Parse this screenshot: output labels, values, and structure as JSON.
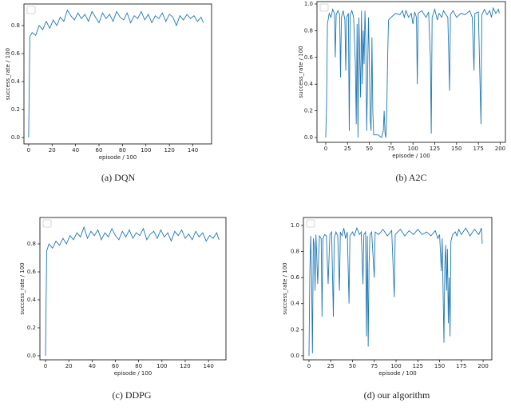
{
  "chart_data": [
    {
      "type": "line",
      "caption": "(a)  DQN",
      "xlabel": "episode / 100",
      "ylabel": "success_rate / 100",
      "color": "#1f77b4",
      "xlim": [
        -4,
        156
      ],
      "ylim": [
        -0.046,
        0.954
      ],
      "xticks": [
        0,
        20,
        40,
        60,
        80,
        100,
        120,
        140
      ],
      "yticks": [
        {
          "value": 0,
          "label": "0.0"
        },
        0.2,
        0.4,
        0.6,
        0.8
      ],
      "x": [
        0,
        1,
        3,
        6,
        9,
        12,
        15,
        18,
        21,
        24,
        27,
        30,
        33,
        36,
        39,
        42,
        45,
        48,
        51,
        54,
        57,
        60,
        63,
        66,
        69,
        72,
        75,
        78,
        81,
        84,
        87,
        90,
        93,
        96,
        99,
        102,
        105,
        108,
        111,
        114,
        117,
        120,
        123,
        126,
        129,
        132,
        135,
        138,
        141,
        144,
        147,
        149
      ],
      "values": [
        0.0,
        0.72,
        0.75,
        0.73,
        0.8,
        0.77,
        0.83,
        0.78,
        0.84,
        0.8,
        0.86,
        0.83,
        0.91,
        0.87,
        0.84,
        0.89,
        0.85,
        0.88,
        0.83,
        0.9,
        0.86,
        0.82,
        0.89,
        0.85,
        0.88,
        0.83,
        0.9,
        0.86,
        0.84,
        0.89,
        0.82,
        0.87,
        0.85,
        0.9,
        0.84,
        0.88,
        0.82,
        0.87,
        0.85,
        0.89,
        0.83,
        0.88,
        0.86,
        0.8,
        0.87,
        0.84,
        0.88,
        0.85,
        0.87,
        0.83,
        0.86,
        0.82
      ]
    },
    {
      "type": "line",
      "caption": "(b)  A2C",
      "xlabel": "episode / 100",
      "ylabel": "success_rate / 100",
      "color": "#1f77b4",
      "xlim": [
        -10,
        206
      ],
      "ylim": [
        -0.036,
        1.018
      ],
      "xticks": [
        0,
        25,
        50,
        75,
        100,
        125,
        150,
        175,
        200
      ],
      "yticks": [
        {
          "value": 0,
          "label": "0.0"
        },
        0.2,
        0.4,
        0.6,
        0.8,
        {
          "value": 1,
          "label": "1.0"
        }
      ],
      "x": [
        0,
        1,
        2,
        4,
        6,
        8,
        10,
        11,
        12,
        14,
        16,
        17,
        18,
        20,
        22,
        23,
        24,
        26,
        27,
        28,
        30,
        32,
        34,
        35,
        36,
        37,
        38,
        40,
        41,
        42,
        43,
        44,
        45,
        46,
        47,
        48,
        49,
        50,
        51,
        52,
        53,
        54,
        55,
        60,
        64,
        66,
        67,
        68,
        69,
        70,
        71,
        72,
        75,
        80,
        85,
        88,
        90,
        92,
        95,
        98,
        100,
        102,
        104,
        105,
        106,
        110,
        115,
        118,
        120,
        121,
        122,
        125,
        128,
        130,
        133,
        135,
        138,
        140,
        142,
        143,
        146,
        150,
        155,
        160,
        165,
        168,
        170,
        171,
        175,
        178,
        179,
        182,
        185,
        188,
        190,
        192,
        195,
        198,
        199
      ],
      "values": [
        0.0,
        0.25,
        0.85,
        0.93,
        0.9,
        0.96,
        0.93,
        0.6,
        0.92,
        0.95,
        0.92,
        0.45,
        0.9,
        0.95,
        0.88,
        0.5,
        0.9,
        0.93,
        0.05,
        0.92,
        0.95,
        0.9,
        0.55,
        0.1,
        0.85,
        0.0,
        0.9,
        0.3,
        0.95,
        0.4,
        0.8,
        0.55,
        0.95,
        0.7,
        0.05,
        0.45,
        0.9,
        0.6,
        0.15,
        0.05,
        0.75,
        0.2,
        0.02,
        0.02,
        0.0,
        0.05,
        0.2,
        0.03,
        0.0,
        0.2,
        0.6,
        0.88,
        0.9,
        0.93,
        0.92,
        0.95,
        0.9,
        0.95,
        0.9,
        0.93,
        0.85,
        0.94,
        0.9,
        0.4,
        0.93,
        0.95,
        0.9,
        0.94,
        0.6,
        0.03,
        0.9,
        0.96,
        0.88,
        0.93,
        0.9,
        0.95,
        0.92,
        0.9,
        0.35,
        0.92,
        0.95,
        0.9,
        0.93,
        0.92,
        0.95,
        0.9,
        0.5,
        0.93,
        0.94,
        0.1,
        0.92,
        0.96,
        0.92,
        0.95,
        0.9,
        0.97,
        0.93,
        0.96,
        0.93
      ]
    },
    {
      "type": "line",
      "caption": "(c)  DDPG",
      "xlabel": "episode / 100",
      "ylabel": "success_rate / 100",
      "color": "#1f77b4",
      "xlim": [
        -4.8,
        155
      ],
      "ylim": [
        -0.029,
        0.989
      ],
      "xticks": [
        0,
        20,
        40,
        60,
        80,
        100,
        120,
        140
      ],
      "yticks": [
        {
          "value": 0,
          "label": "0.0"
        },
        0.2,
        0.4,
        0.6,
        0.8
      ],
      "x": [
        0,
        1,
        3,
        6,
        9,
        12,
        15,
        18,
        21,
        24,
        27,
        30,
        33,
        36,
        39,
        42,
        45,
        48,
        51,
        54,
        57,
        60,
        63,
        66,
        69,
        72,
        75,
        78,
        81,
        84,
        87,
        90,
        93,
        96,
        99,
        102,
        105,
        108,
        111,
        114,
        117,
        120,
        123,
        126,
        129,
        132,
        135,
        138,
        141,
        144,
        147,
        149
      ],
      "values": [
        0.0,
        0.75,
        0.8,
        0.77,
        0.82,
        0.79,
        0.84,
        0.8,
        0.86,
        0.83,
        0.88,
        0.85,
        0.92,
        0.84,
        0.89,
        0.86,
        0.9,
        0.83,
        0.88,
        0.85,
        0.91,
        0.86,
        0.83,
        0.89,
        0.85,
        0.9,
        0.84,
        0.88,
        0.86,
        0.91,
        0.83,
        0.87,
        0.89,
        0.84,
        0.9,
        0.85,
        0.88,
        0.82,
        0.89,
        0.86,
        0.9,
        0.84,
        0.87,
        0.83,
        0.89,
        0.85,
        0.88,
        0.82,
        0.86,
        0.84,
        0.88,
        0.83
      ]
    },
    {
      "type": "line",
      "caption": "(d)  our algorithm",
      "xlabel": "episode / 100",
      "ylabel": "success_rate / 100",
      "color": "#1f77b4",
      "xlim": [
        -6.4,
        210
      ],
      "ylim": [
        -0.031,
        1.061
      ],
      "xticks": [
        0,
        25,
        50,
        75,
        100,
        125,
        150,
        175,
        200
      ],
      "yticks": [
        {
          "value": 0,
          "label": "0.0"
        },
        0.2,
        0.4,
        0.6,
        0.8,
        {
          "value": 1,
          "label": "1.0"
        }
      ],
      "x": [
        0,
        1,
        2,
        3,
        4,
        5,
        6,
        7,
        8,
        9,
        10,
        12,
        14,
        15,
        16,
        18,
        20,
        22,
        24,
        26,
        28,
        29,
        31,
        33,
        35,
        36,
        38,
        40,
        42,
        44,
        46,
        47,
        50,
        52,
        55,
        58,
        60,
        62,
        63,
        65,
        66,
        67,
        68,
        69,
        70,
        72,
        75,
        76,
        80,
        85,
        90,
        95,
        98,
        99,
        102,
        105,
        110,
        115,
        120,
        125,
        130,
        135,
        140,
        145,
        148,
        150,
        152,
        153,
        155,
        156,
        157,
        158,
        159,
        160,
        161,
        162,
        163,
        165,
        168,
        170,
        172,
        175,
        180,
        185,
        190,
        195,
        198,
        199
      ],
      "values": [
        0.0,
        0.65,
        0.92,
        0.6,
        0.02,
        0.9,
        0.85,
        0.5,
        0.93,
        0.75,
        0.55,
        0.92,
        0.9,
        0.3,
        0.9,
        0.93,
        0.92,
        0.55,
        0.93,
        0.95,
        0.3,
        0.9,
        0.95,
        0.92,
        0.5,
        0.95,
        0.92,
        0.98,
        0.9,
        0.95,
        0.4,
        0.92,
        0.95,
        0.92,
        0.98,
        0.93,
        0.95,
        0.55,
        0.93,
        0.95,
        0.15,
        0.92,
        0.07,
        0.7,
        0.93,
        0.95,
        0.6,
        0.95,
        0.93,
        0.97,
        0.92,
        0.96,
        0.45,
        0.93,
        0.95,
        0.97,
        0.92,
        0.96,
        0.93,
        0.97,
        0.93,
        0.95,
        0.92,
        0.96,
        0.9,
        0.93,
        0.65,
        0.9,
        0.1,
        0.7,
        0.85,
        0.5,
        0.82,
        0.25,
        0.6,
        0.15,
        0.88,
        0.93,
        0.95,
        0.92,
        0.97,
        0.93,
        0.98,
        0.92,
        0.97,
        0.93,
        0.98,
        0.86
      ]
    }
  ]
}
